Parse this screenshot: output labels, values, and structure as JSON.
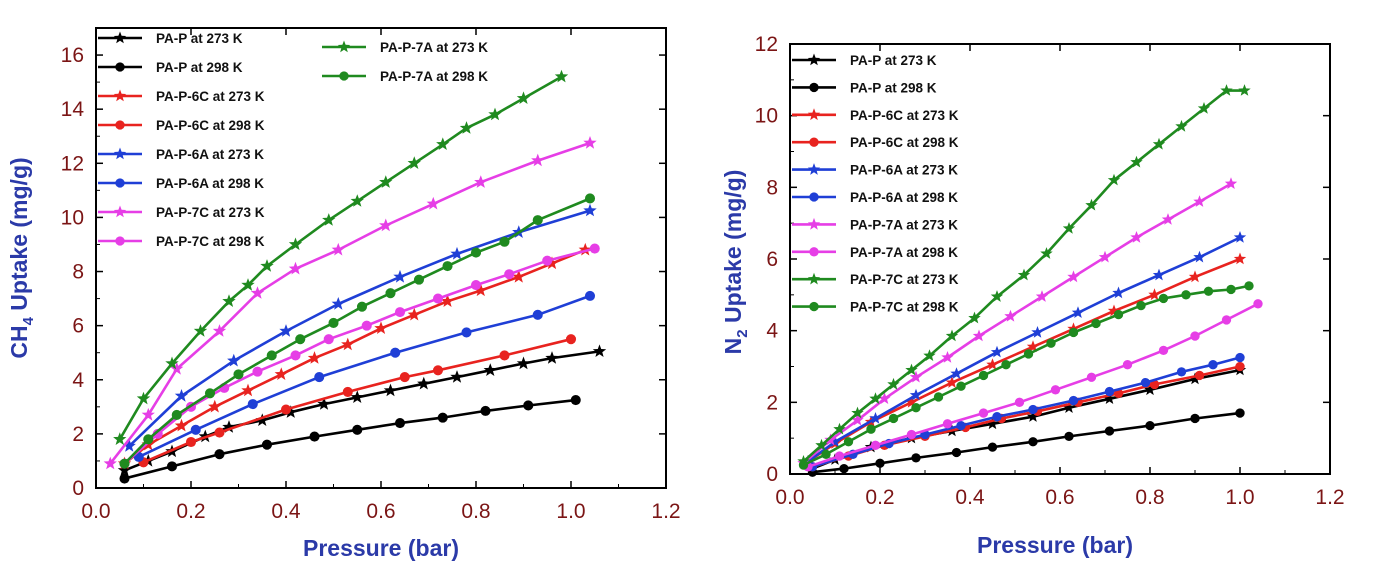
{
  "chart_data": [
    {
      "type": "line",
      "xlabel": "Pressure (bar)",
      "ylabel_main": "CH",
      "ylabel_sub": "4",
      "ylabel_rest": " Uptake (mg/g)",
      "xlim": [
        0.0,
        1.2
      ],
      "ylim": [
        0,
        17
      ],
      "xticks": [
        "0.0",
        "0.2",
        "0.4",
        "0.6",
        "0.8",
        "1.0",
        "1.2"
      ],
      "yticks": [
        "0",
        "2",
        "4",
        "6",
        "8",
        "10",
        "12",
        "14",
        "16"
      ],
      "legend_left_column": [
        0,
        1,
        2,
        3,
        4,
        5,
        6,
        7
      ],
      "legend_right_column": [
        8,
        9
      ],
      "series": [
        {
          "name": "PA-P at 273 K",
          "color": "#000000",
          "marker": "star",
          "x": [
            0.06,
            0.11,
            0.16,
            0.23,
            0.28,
            0.35,
            0.41,
            0.48,
            0.55,
            0.62,
            0.69,
            0.76,
            0.83,
            0.9,
            0.96,
            1.06
          ],
          "y": [
            0.65,
            1.0,
            1.35,
            1.9,
            2.25,
            2.5,
            2.8,
            3.1,
            3.35,
            3.6,
            3.85,
            4.1,
            4.35,
            4.6,
            4.8,
            5.05
          ]
        },
        {
          "name": "PA-P at 298 K",
          "color": "#000000",
          "marker": "circle",
          "x": [
            0.06,
            0.16,
            0.26,
            0.36,
            0.46,
            0.55,
            0.64,
            0.73,
            0.82,
            0.91,
            1.01
          ],
          "y": [
            0.35,
            0.8,
            1.25,
            1.6,
            1.9,
            2.15,
            2.4,
            2.6,
            2.85,
            3.05,
            3.25
          ]
        },
        {
          "name": "PA-P-6C at 273 K",
          "color": "#e8231f",
          "marker": "star",
          "x": [
            0.06,
            0.11,
            0.18,
            0.25,
            0.32,
            0.39,
            0.46,
            0.53,
            0.6,
            0.67,
            0.74,
            0.81,
            0.89,
            0.96,
            1.03
          ],
          "y": [
            0.9,
            1.6,
            2.3,
            3.0,
            3.6,
            4.2,
            4.8,
            5.3,
            5.9,
            6.4,
            6.9,
            7.3,
            7.8,
            8.3,
            8.8
          ]
        },
        {
          "name": "PA-P-6C at 298 K",
          "color": "#e8231f",
          "marker": "circle",
          "x": [
            0.1,
            0.2,
            0.26,
            0.4,
            0.53,
            0.65,
            0.72,
            0.86,
            1.0
          ],
          "y": [
            0.95,
            1.7,
            2.05,
            2.9,
            3.55,
            4.1,
            4.35,
            4.9,
            5.5
          ]
        },
        {
          "name": "PA-P-6A at 273 K",
          "color": "#1f3fd6",
          "marker": "star",
          "x": [
            0.07,
            0.18,
            0.29,
            0.4,
            0.51,
            0.64,
            0.76,
            0.89,
            1.04
          ],
          "y": [
            1.55,
            3.4,
            4.7,
            5.8,
            6.8,
            7.8,
            8.65,
            9.45,
            10.25
          ]
        },
        {
          "name": "PA-P-6A at 298 K",
          "color": "#1f3fd6",
          "marker": "circle",
          "x": [
            0.09,
            0.21,
            0.33,
            0.47,
            0.63,
            0.78,
            0.93,
            1.04
          ],
          "y": [
            1.15,
            2.15,
            3.1,
            4.1,
            5.0,
            5.75,
            6.4,
            7.1
          ]
        },
        {
          "name": "PA-P-7C at 273 K",
          "color": "#e63ee6",
          "marker": "star",
          "x": [
            0.03,
            0.11,
            0.17,
            0.26,
            0.34,
            0.42,
            0.51,
            0.61,
            0.71,
            0.81,
            0.93,
            1.04
          ],
          "y": [
            0.9,
            2.7,
            4.4,
            5.8,
            7.2,
            8.1,
            8.8,
            9.7,
            10.5,
            11.3,
            12.1,
            12.75
          ]
        },
        {
          "name": "PA-P-7C at 298 K",
          "color": "#e63ee6",
          "marker": "circle",
          "x": [
            0.06,
            0.13,
            0.2,
            0.27,
            0.34,
            0.42,
            0.49,
            0.57,
            0.64,
            0.72,
            0.8,
            0.87,
            0.95,
            1.05
          ],
          "y": [
            0.9,
            2.0,
            3.0,
            3.7,
            4.3,
            4.9,
            5.5,
            6.0,
            6.5,
            7.0,
            7.5,
            7.9,
            8.4,
            8.85
          ]
        },
        {
          "name": "PA-P-7A at 273 K",
          "color": "#1f8a1f",
          "marker": "star",
          "x": [
            0.05,
            0.1,
            0.16,
            0.22,
            0.28,
            0.32,
            0.36,
            0.42,
            0.49,
            0.55,
            0.61,
            0.67,
            0.73,
            0.78,
            0.84,
            0.9,
            0.98
          ],
          "y": [
            1.8,
            3.3,
            4.6,
            5.8,
            6.9,
            7.5,
            8.2,
            9.0,
            9.9,
            10.6,
            11.3,
            12.0,
            12.7,
            13.3,
            13.8,
            14.4,
            15.2
          ]
        },
        {
          "name": "PA-P-7A at 298 K",
          "color": "#1f8a1f",
          "marker": "circle",
          "x": [
            0.06,
            0.11,
            0.17,
            0.24,
            0.3,
            0.37,
            0.43,
            0.5,
            0.56,
            0.62,
            0.68,
            0.74,
            0.8,
            0.86,
            0.93,
            1.04
          ],
          "y": [
            0.9,
            1.8,
            2.7,
            3.5,
            4.2,
            4.9,
            5.5,
            6.1,
            6.7,
            7.2,
            7.7,
            8.2,
            8.7,
            9.1,
            9.9,
            10.7
          ]
        }
      ]
    },
    {
      "type": "line",
      "xlabel": "Pressure (bar)",
      "ylabel_main": "N",
      "ylabel_sub": "2",
      "ylabel_rest": " Uptake (mg/g)",
      "xlim": [
        0.0,
        1.2
      ],
      "ylim": [
        0,
        12
      ],
      "xticks": [
        "0.0",
        "0.2",
        "0.4",
        "0.6",
        "0.8",
        "1.0",
        "1.2"
      ],
      "yticks": [
        "0",
        "2",
        "4",
        "6",
        "8",
        "10",
        "12"
      ],
      "legend_left_column": [
        0,
        1,
        2,
        3,
        4,
        5,
        6,
        7,
        8,
        9
      ],
      "legend_right_column": [],
      "series": [
        {
          "name": "PA-P at 273 K",
          "color": "#000000",
          "marker": "star",
          "x": [
            0.05,
            0.1,
            0.18,
            0.27,
            0.36,
            0.45,
            0.54,
            0.62,
            0.71,
            0.8,
            0.9,
            1.0
          ],
          "y": [
            0.15,
            0.4,
            0.75,
            1.0,
            1.2,
            1.4,
            1.6,
            1.85,
            2.1,
            2.35,
            2.65,
            2.9
          ]
        },
        {
          "name": "PA-P at 298 K",
          "color": "#000000",
          "marker": "circle",
          "x": [
            0.05,
            0.12,
            0.2,
            0.28,
            0.37,
            0.45,
            0.54,
            0.62,
            0.71,
            0.8,
            0.9,
            1.0
          ],
          "y": [
            0.05,
            0.15,
            0.3,
            0.45,
            0.6,
            0.75,
            0.9,
            1.05,
            1.2,
            1.35,
            1.55,
            1.7
          ]
        },
        {
          "name": "PA-P-6C at 273 K",
          "color": "#e8231f",
          "marker": "star",
          "x": [
            0.04,
            0.1,
            0.18,
            0.27,
            0.36,
            0.45,
            0.54,
            0.63,
            0.72,
            0.81,
            0.9,
            1.0
          ],
          "y": [
            0.35,
            0.85,
            1.45,
            2.0,
            2.55,
            3.05,
            3.55,
            4.05,
            4.55,
            5.0,
            5.5,
            6.0
          ]
        },
        {
          "name": "PA-P-6C at 298 K",
          "color": "#e8231f",
          "marker": "circle",
          "x": [
            0.05,
            0.13,
            0.21,
            0.3,
            0.39,
            0.47,
            0.55,
            0.64,
            0.73,
            0.81,
            0.91,
            1.0
          ],
          "y": [
            0.2,
            0.5,
            0.8,
            1.05,
            1.3,
            1.55,
            1.75,
            2.0,
            2.25,
            2.5,
            2.75,
            3.0
          ]
        },
        {
          "name": "PA-P-6A at 273 K",
          "color": "#1f3fd6",
          "marker": "star",
          "x": [
            0.04,
            0.1,
            0.19,
            0.28,
            0.37,
            0.46,
            0.55,
            0.64,
            0.73,
            0.82,
            0.91,
            1.0
          ],
          "y": [
            0.35,
            0.9,
            1.55,
            2.2,
            2.8,
            3.4,
            3.95,
            4.5,
            5.05,
            5.55,
            6.05,
            6.6
          ]
        },
        {
          "name": "PA-P-6A at 298 K",
          "color": "#1f3fd6",
          "marker": "circle",
          "x": [
            0.05,
            0.14,
            0.22,
            0.3,
            0.38,
            0.46,
            0.54,
            0.63,
            0.71,
            0.79,
            0.87,
            0.94,
            1.0
          ],
          "y": [
            0.2,
            0.55,
            0.85,
            1.1,
            1.35,
            1.6,
            1.8,
            2.05,
            2.3,
            2.55,
            2.85,
            3.05,
            3.25
          ]
        },
        {
          "name": "PA-P-7A at 273 K",
          "color": "#e63ee6",
          "marker": "star",
          "x": [
            0.03,
            0.09,
            0.15,
            0.21,
            0.28,
            0.35,
            0.42,
            0.49,
            0.56,
            0.63,
            0.7,
            0.77,
            0.84,
            0.91,
            0.98
          ],
          "y": [
            0.3,
            0.95,
            1.5,
            2.1,
            2.7,
            3.25,
            3.85,
            4.4,
            4.95,
            5.5,
            6.05,
            6.6,
            7.1,
            7.6,
            8.1
          ]
        },
        {
          "name": "PA-P-7A at 298 K",
          "color": "#e63ee6",
          "marker": "circle",
          "x": [
            0.04,
            0.11,
            0.19,
            0.27,
            0.35,
            0.43,
            0.51,
            0.59,
            0.67,
            0.75,
            0.83,
            0.9,
            0.97,
            1.04
          ],
          "y": [
            0.2,
            0.5,
            0.8,
            1.1,
            1.4,
            1.7,
            2.0,
            2.35,
            2.7,
            3.05,
            3.45,
            3.85,
            4.3,
            4.75
          ]
        },
        {
          "name": "PA-P-7C at 273 K",
          "color": "#1f8a1f",
          "marker": "star",
          "x": [
            0.03,
            0.07,
            0.11,
            0.15,
            0.19,
            0.23,
            0.27,
            0.31,
            0.36,
            0.41,
            0.46,
            0.52,
            0.57,
            0.62,
            0.67,
            0.72,
            0.77,
            0.82,
            0.87,
            0.92,
            0.97,
            1.01
          ],
          "y": [
            0.35,
            0.8,
            1.25,
            1.7,
            2.1,
            2.5,
            2.9,
            3.3,
            3.85,
            4.35,
            4.95,
            5.55,
            6.15,
            6.85,
            7.5,
            8.2,
            8.7,
            9.2,
            9.7,
            10.2,
            10.7,
            10.7
          ]
        },
        {
          "name": "PA-P-7C at 298 K",
          "color": "#1f8a1f",
          "marker": "circle",
          "x": [
            0.03,
            0.08,
            0.13,
            0.18,
            0.23,
            0.28,
            0.33,
            0.38,
            0.43,
            0.48,
            0.53,
            0.58,
            0.63,
            0.68,
            0.73,
            0.78,
            0.83,
            0.88,
            0.93,
            0.98,
            1.02
          ],
          "y": [
            0.25,
            0.55,
            0.9,
            1.25,
            1.55,
            1.85,
            2.15,
            2.45,
            2.75,
            3.05,
            3.35,
            3.65,
            3.95,
            4.2,
            4.45,
            4.7,
            4.9,
            5.0,
            5.1,
            5.15,
            5.25
          ]
        }
      ]
    }
  ]
}
